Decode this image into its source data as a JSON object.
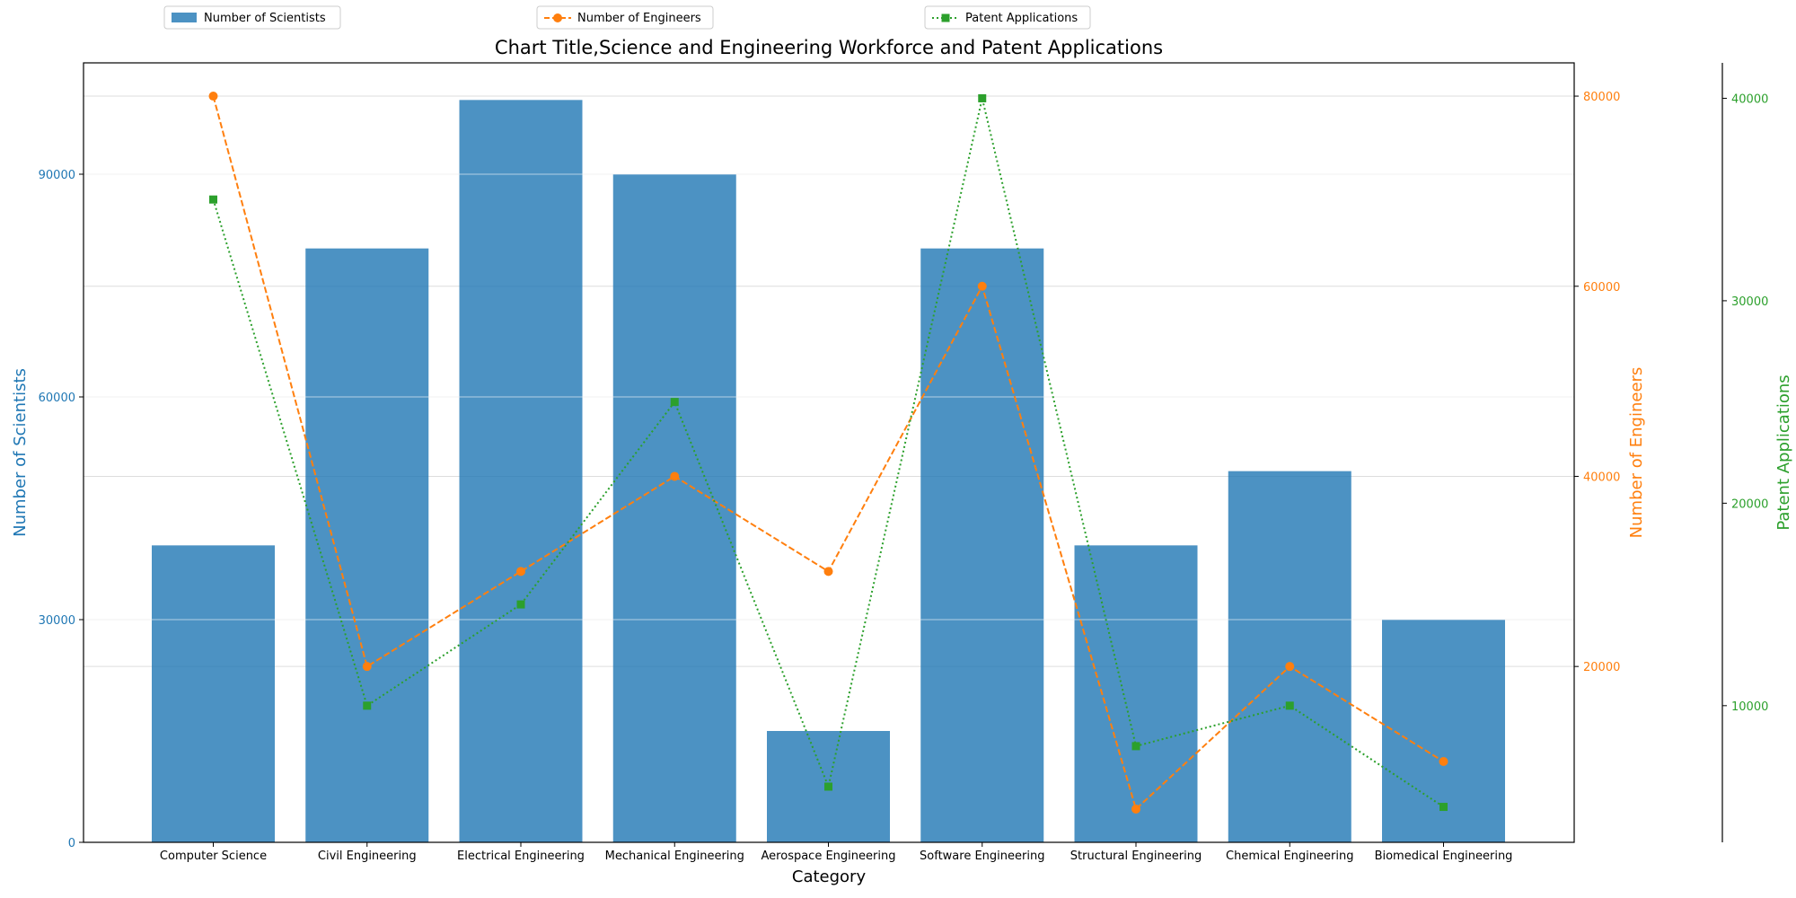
{
  "chart_data": {
    "type": "bar",
    "title": "Chart Title,Science and Engineering Workforce and Patent Applications",
    "xlabel": "Category",
    "categories": [
      "Computer Science",
      "Civil Engineering",
      "Electrical Engineering",
      "Mechanical Engineering",
      "Aerospace Engineering",
      "Software Engineering",
      "Structural Engineering",
      "Chemical Engineering",
      "Biomedical Engineering"
    ],
    "series": [
      {
        "name": "Number of Scientists",
        "chart_type": "bar",
        "axis": "left",
        "color": "#1f77b4",
        "values": [
          40000,
          80000,
          100000,
          90000,
          15000,
          80000,
          40000,
          50000,
          30000
        ]
      },
      {
        "name": "Number of Engineers",
        "chart_type": "line",
        "line_style": "dashed",
        "marker": "circle",
        "axis": "right",
        "color": "#ff7f0e",
        "values": [
          80000,
          20000,
          30000,
          40000,
          30000,
          60000,
          5000,
          20000,
          10000
        ]
      },
      {
        "name": "Patent Applications",
        "chart_type": "line",
        "line_style": "dotted",
        "marker": "square",
        "axis": "right-outer",
        "color": "#2ca02c",
        "values": [
          35000,
          10000,
          15000,
          25000,
          6000,
          40000,
          8000,
          10000,
          5000
        ]
      }
    ],
    "axes": {
      "left": {
        "label": "Number of Scientists",
        "color": "#1f77b4",
        "ylim": [
          0,
          105000
        ],
        "ticks": [
          0,
          30000,
          60000,
          90000
        ]
      },
      "right": {
        "label": "Number of Engineers",
        "color": "#ff7f0e",
        "ylim": [
          1500,
          83500
        ],
        "ticks": [
          20000,
          40000,
          60000,
          80000
        ]
      },
      "right_outer": {
        "label": "Patent Applications",
        "color": "#2ca02c",
        "ylim": [
          3250,
          41750
        ],
        "ticks": [
          10000,
          20000,
          30000,
          40000
        ]
      }
    },
    "grid": true,
    "legend": "top, three separate boxes"
  }
}
